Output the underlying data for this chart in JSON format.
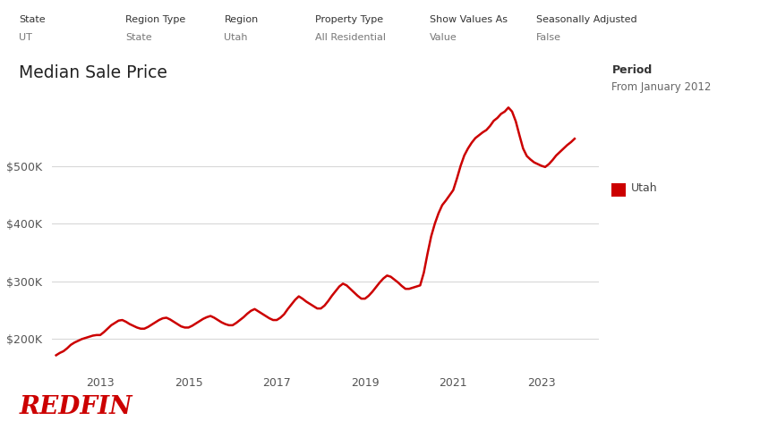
{
  "title": "Median Sale Price",
  "line_color": "#cc0000",
  "bg_color": "#ffffff",
  "grid_color": "#d8d8d8",
  "ylabel_ticks": [
    "$200K",
    "$300K",
    "$400K",
    "$500K"
  ],
  "ytick_values": [
    200000,
    300000,
    400000,
    500000
  ],
  "xlim_start": 2011.9,
  "xlim_end": 2024.3,
  "ylim_bottom": 150000,
  "ylim_top": 625000,
  "xtick_years": [
    2013,
    2015,
    2017,
    2019,
    2021,
    2023
  ],
  "header_labels": [
    "State",
    "Region Type",
    "Region",
    "Property Type",
    "Show Values As",
    "Seasonally Adjusted"
  ],
  "header_values": [
    "UT",
    "State",
    "Utah",
    "All Residential",
    "Value",
    "False"
  ],
  "header_x_fig": [
    0.025,
    0.165,
    0.295,
    0.415,
    0.565,
    0.705
  ],
  "period_label": "Period",
  "period_value": "From January 2012",
  "legend_label": "Utah",
  "redfin_text": "REDFIN",
  "redfin_color": "#cc0000",
  "data_x": [
    2012.0,
    2012.083,
    2012.167,
    2012.25,
    2012.333,
    2012.417,
    2012.5,
    2012.583,
    2012.667,
    2012.75,
    2012.833,
    2012.917,
    2013.0,
    2013.083,
    2013.167,
    2013.25,
    2013.333,
    2013.417,
    2013.5,
    2013.583,
    2013.667,
    2013.75,
    2013.833,
    2013.917,
    2014.0,
    2014.083,
    2014.167,
    2014.25,
    2014.333,
    2014.417,
    2014.5,
    2014.583,
    2014.667,
    2014.75,
    2014.833,
    2014.917,
    2015.0,
    2015.083,
    2015.167,
    2015.25,
    2015.333,
    2015.417,
    2015.5,
    2015.583,
    2015.667,
    2015.75,
    2015.833,
    2015.917,
    2016.0,
    2016.083,
    2016.167,
    2016.25,
    2016.333,
    2016.417,
    2016.5,
    2016.583,
    2016.667,
    2016.75,
    2016.833,
    2016.917,
    2017.0,
    2017.083,
    2017.167,
    2017.25,
    2017.333,
    2017.417,
    2017.5,
    2017.583,
    2017.667,
    2017.75,
    2017.833,
    2017.917,
    2018.0,
    2018.083,
    2018.167,
    2018.25,
    2018.333,
    2018.417,
    2018.5,
    2018.583,
    2018.667,
    2018.75,
    2018.833,
    2018.917,
    2019.0,
    2019.083,
    2019.167,
    2019.25,
    2019.333,
    2019.417,
    2019.5,
    2019.583,
    2019.667,
    2019.75,
    2019.833,
    2019.917,
    2020.0,
    2020.083,
    2020.167,
    2020.25,
    2020.333,
    2020.417,
    2020.5,
    2020.583,
    2020.667,
    2020.75,
    2020.833,
    2020.917,
    2021.0,
    2021.083,
    2021.167,
    2021.25,
    2021.333,
    2021.417,
    2021.5,
    2021.583,
    2021.667,
    2021.75,
    2021.833,
    2021.917,
    2022.0,
    2022.083,
    2022.167,
    2022.25,
    2022.333,
    2022.417,
    2022.5,
    2022.583,
    2022.667,
    2022.75,
    2022.833,
    2022.917,
    2023.0,
    2023.083,
    2023.167,
    2023.25,
    2023.333,
    2023.417,
    2023.5,
    2023.583,
    2023.667,
    2023.75
  ],
  "data_y": [
    172000,
    176000,
    179000,
    184000,
    190000,
    194000,
    197000,
    200000,
    202000,
    204000,
    206000,
    207000,
    207000,
    212000,
    218000,
    224000,
    228000,
    232000,
    233000,
    230000,
    226000,
    223000,
    220000,
    218000,
    218000,
    221000,
    225000,
    229000,
    233000,
    236000,
    237000,
    234000,
    230000,
    226000,
    222000,
    220000,
    220000,
    223000,
    227000,
    231000,
    235000,
    238000,
    240000,
    237000,
    233000,
    229000,
    226000,
    224000,
    224000,
    228000,
    233000,
    238000,
    244000,
    249000,
    252000,
    248000,
    244000,
    240000,
    236000,
    233000,
    233000,
    237000,
    243000,
    252000,
    260000,
    268000,
    274000,
    270000,
    265000,
    261000,
    257000,
    253000,
    253000,
    258000,
    266000,
    275000,
    283000,
    291000,
    296000,
    293000,
    287000,
    281000,
    275000,
    270000,
    270000,
    275000,
    282000,
    290000,
    298000,
    305000,
    310000,
    308000,
    303000,
    298000,
    292000,
    287000,
    287000,
    289000,
    291000,
    293000,
    315000,
    348000,
    378000,
    400000,
    418000,
    432000,
    440000,
    449000,
    458000,
    478000,
    500000,
    518000,
    530000,
    540000,
    548000,
    553000,
    558000,
    562000,
    569000,
    578000,
    583000,
    590000,
    594000,
    601000,
    594000,
    577000,
    553000,
    530000,
    517000,
    511000,
    506000,
    503000,
    500000,
    498000,
    503000,
    510000,
    518000,
    524000,
    530000,
    536000,
    541000,
    547000
  ]
}
